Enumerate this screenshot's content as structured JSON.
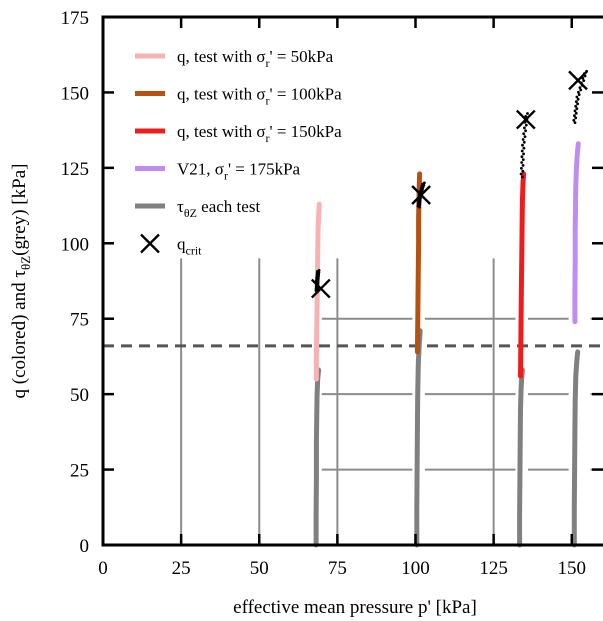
{
  "chart_data": {
    "type": "line",
    "title": "",
    "xlabel": "effective mean pressure p' [kPa]",
    "ylabel": {
      "part1": "q (colored) and ",
      "tau": "τ",
      "tau_sub": "θZ",
      "part2": "(grey) [kPa]"
    },
    "xlim": [
      0,
      160
    ],
    "ylim": [
      0,
      175
    ],
    "x_ticks": [
      0,
      25,
      50,
      75,
      100,
      125,
      150
    ],
    "y_ticks": [
      0,
      25,
      50,
      75,
      100,
      125,
      150,
      175
    ],
    "grid": {
      "vertical": [
        25,
        50,
        75,
        125
      ],
      "vertical_top": 95,
      "horizontal": [
        25,
        50,
        75
      ],
      "horizontal_x_start": 70,
      "h_grid_skip": [
        [
          99,
          103
        ],
        [
          132,
          136
        ],
        [
          149,
          156
        ]
      ]
    },
    "reference_line": {
      "y": 66,
      "style": "dashed",
      "color": "#555555"
    },
    "legend_position": "top-left",
    "colors": {
      "test_50": "#f7b3b1",
      "test_100": "#b8510f",
      "test_150": "#ee1c1c",
      "v21": "#c08cf0",
      "tau": "#808080",
      "qcrit": "#000000",
      "grid": "#8c8c8c"
    },
    "series": [
      {
        "name": "q, test with σr' = 50kPa",
        "legend": {
          "pre": "q, test with σ",
          "sub": "r",
          "post": "' = 50kPa"
        },
        "color_key": "test_50",
        "points": [
          [
            68.3,
            55
          ],
          [
            68.3,
            62
          ],
          [
            68.4,
            72
          ],
          [
            68.5,
            80
          ],
          [
            68.6,
            88
          ],
          [
            68.7,
            96
          ],
          [
            68.8,
            104
          ],
          [
            69.0,
            109
          ],
          [
            69.2,
            113
          ]
        ]
      },
      {
        "name": "q, test with σr' = 100kPa",
        "legend": {
          "pre": "q, test with σ",
          "sub": "r",
          "post": "' = 100kPa"
        },
        "color_key": "test_100",
        "points": [
          [
            100.6,
            64
          ],
          [
            100.7,
            72
          ],
          [
            100.8,
            82
          ],
          [
            100.9,
            92
          ],
          [
            101.0,
            100
          ],
          [
            101.0,
            108
          ],
          [
            101.1,
            114
          ],
          [
            101.2,
            119
          ],
          [
            101.3,
            123
          ]
        ]
      },
      {
        "name": "q, test with σr' = 150kPa",
        "legend": {
          "pre": "q, test with σ",
          "sub": "r",
          "post": "' = 150kPa"
        },
        "color_key": "test_150",
        "points": [
          [
            133.6,
            56
          ],
          [
            133.7,
            65
          ],
          [
            133.8,
            76
          ],
          [
            133.9,
            86
          ],
          [
            134.0,
            96
          ],
          [
            134.1,
            106
          ],
          [
            134.2,
            114
          ],
          [
            134.4,
            120
          ],
          [
            134.6,
            123
          ]
        ]
      },
      {
        "name": "V21, σr' = 175kPa",
        "legend": {
          "pre": "V21, σ",
          "sub": "r",
          "post": "' = 175kPa"
        },
        "color_key": "v21",
        "points": [
          [
            151.0,
            74
          ],
          [
            151.0,
            84
          ],
          [
            151.1,
            94
          ],
          [
            151.1,
            104
          ],
          [
            151.2,
            112
          ],
          [
            151.3,
            119
          ],
          [
            151.5,
            125
          ],
          [
            151.8,
            130
          ],
          [
            152.1,
            133
          ]
        ]
      },
      {
        "name": "τθZ each test",
        "legend": {
          "pre": "τ",
          "sub": "θZ",
          "post": " each test"
        },
        "color_key": "tau",
        "segments": [
          [
            [
              68.2,
              0
            ],
            [
              68.2,
              10
            ],
            [
              68.3,
              22
            ],
            [
              68.3,
              34
            ],
            [
              68.4,
              44
            ],
            [
              68.5,
              50
            ],
            [
              68.7,
              55
            ],
            [
              69.0,
              58
            ]
          ],
          [
            [
              100.4,
              0
            ],
            [
              100.4,
              12
            ],
            [
              100.5,
              25
            ],
            [
              100.6,
              38
            ],
            [
              100.7,
              50
            ],
            [
              100.9,
              60
            ],
            [
              101.2,
              67
            ],
            [
              101.5,
              71
            ]
          ],
          [
            [
              133.3,
              0
            ],
            [
              133.3,
              10
            ],
            [
              133.4,
              22
            ],
            [
              133.5,
              34
            ],
            [
              133.6,
              45
            ],
            [
              133.8,
              52
            ],
            [
              134.0,
              56
            ],
            [
              134.2,
              58
            ]
          ],
          [
            [
              150.8,
              0
            ],
            [
              150.8,
              12
            ],
            [
              150.9,
              25
            ],
            [
              151.0,
              38
            ],
            [
              151.1,
              48
            ],
            [
              151.3,
              56
            ],
            [
              151.6,
              61
            ],
            [
              151.9,
              64
            ]
          ]
        ]
      },
      {
        "name": "qcrit",
        "legend": {
          "pre": "q",
          "sub": "crit",
          "post": ""
        },
        "color_key": "qcrit",
        "points": [
          [
            69.7,
            85
          ],
          [
            101.8,
            116
          ],
          [
            135.3,
            141
          ],
          [
            152.0,
            154
          ]
        ]
      }
    ],
    "post_peak_dots": [
      {
        "x0": 68.4,
        "y0": 84,
        "x1": 68.9,
        "y1": 91
      },
      {
        "x0": 101.0,
        "y0": 112,
        "x1": 102.6,
        "y1": 120
      },
      {
        "x0": 134.0,
        "y0": 122,
        "x1": 135.6,
        "y1": 143
      },
      {
        "x0": 150.8,
        "y0": 140,
        "x1": 154.5,
        "y1": 157
      }
    ]
  }
}
